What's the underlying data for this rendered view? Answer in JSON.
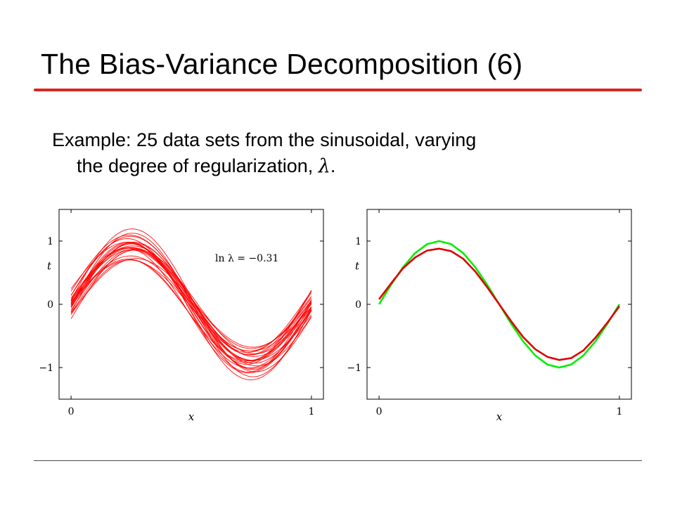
{
  "slide": {
    "title": "The Bias-Variance Decomposition (6)",
    "body_line1": "Example: 25 data sets from the sinusoidal, varying",
    "body_line2_prefix": "the degree of regularization, ",
    "body_symbol": "λ",
    "body_line2_suffix": "."
  },
  "colors": {
    "title_rule": "#d7261f",
    "fits": "#ff0000",
    "mean_fit": "#dd0000",
    "true_curve": "#00ee00"
  },
  "chart_data": [
    {
      "type": "line",
      "annotation": "ln λ = −0.31",
      "xlabel": "x",
      "ylabel": "t",
      "xlim": [
        -0.05,
        1.05
      ],
      "ylim": [
        -1.5,
        1.5
      ],
      "xticks": [
        {
          "value": 0,
          "label": "0"
        },
        {
          "value": 1,
          "label": "1"
        }
      ],
      "yticks": [
        {
          "value": 1,
          "label": "1"
        },
        {
          "value": 0,
          "label": "0"
        },
        {
          "value": -1,
          "label": "−1"
        }
      ],
      "grid": false,
      "series_description": "25 regularized fits, one per data set",
      "series": [
        {
          "a": 0.9,
          "p": 0.02,
          "c": 0.0,
          "d": 0.05
        },
        {
          "a": 0.85,
          "p": -0.05,
          "c": 0.05,
          "d": -0.1
        },
        {
          "a": 1.05,
          "p": 0.06,
          "c": -0.05,
          "d": 0.12
        },
        {
          "a": 0.8,
          "p": 0.0,
          "c": 0.1,
          "d": 0.0
        },
        {
          "a": 0.95,
          "p": 0.1,
          "c": -0.1,
          "d": -0.15
        },
        {
          "a": 0.75,
          "p": -0.08,
          "c": 0.02,
          "d": 0.2
        },
        {
          "a": 1.1,
          "p": -0.03,
          "c": 0.08,
          "d": -0.05
        },
        {
          "a": 0.88,
          "p": 0.04,
          "c": -0.15,
          "d": 0.1
        },
        {
          "a": 0.92,
          "p": -0.1,
          "c": 0.0,
          "d": -0.2
        },
        {
          "a": 1.0,
          "p": 0.12,
          "c": 0.06,
          "d": 0.08
        },
        {
          "a": 0.7,
          "p": 0.03,
          "c": -0.02,
          "d": -0.08
        },
        {
          "a": 0.98,
          "p": -0.06,
          "c": -0.08,
          "d": 0.18
        },
        {
          "a": 0.83,
          "p": 0.08,
          "c": 0.12,
          "d": -0.12
        },
        {
          "a": 1.08,
          "p": 0.01,
          "c": -0.12,
          "d": 0.02
        },
        {
          "a": 0.86,
          "p": -0.12,
          "c": 0.04,
          "d": 0.14
        },
        {
          "a": 0.94,
          "p": 0.05,
          "c": 0.15,
          "d": -0.02
        },
        {
          "a": 0.78,
          "p": -0.02,
          "c": -0.06,
          "d": -0.18
        },
        {
          "a": 1.02,
          "p": 0.09,
          "c": 0.02,
          "d": 0.22
        },
        {
          "a": 0.9,
          "p": -0.07,
          "c": -0.03,
          "d": 0.0
        },
        {
          "a": 0.96,
          "p": 0.0,
          "c": 0.09,
          "d": -0.1
        },
        {
          "a": 0.82,
          "p": 0.11,
          "c": -0.09,
          "d": 0.06
        },
        {
          "a": 1.12,
          "p": -0.04,
          "c": -0.01,
          "d": -0.06
        },
        {
          "a": 0.87,
          "p": 0.07,
          "c": 0.07,
          "d": 0.16
        },
        {
          "a": 0.99,
          "p": -0.09,
          "c": -0.04,
          "d": -0.14
        },
        {
          "a": 0.84,
          "p": 0.02,
          "c": 0.03,
          "d": 0.04
        }
      ]
    },
    {
      "type": "line",
      "xlabel": "x",
      "ylabel": "t",
      "xlim": [
        -0.05,
        1.05
      ],
      "ylim": [
        -1.5,
        1.5
      ],
      "xticks": [
        {
          "value": 0,
          "label": "0"
        },
        {
          "value": 1,
          "label": "1"
        }
      ],
      "yticks": [
        {
          "value": 1,
          "label": "1"
        },
        {
          "value": 0,
          "label": "0"
        },
        {
          "value": -1,
          "label": "−1"
        }
      ],
      "grid": false,
      "series": [
        {
          "color": "#00ee00",
          "x": [
            0,
            0.05,
            0.1,
            0.15,
            0.2,
            0.25,
            0.3,
            0.35,
            0.4,
            0.45,
            0.5,
            0.55,
            0.6,
            0.65,
            0.7,
            0.75,
            0.8,
            0.85,
            0.9,
            0.95,
            1.0
          ],
          "y": [
            0,
            0.309,
            0.588,
            0.809,
            0.951,
            1.0,
            0.951,
            0.809,
            0.588,
            0.309,
            0,
            -0.309,
            -0.588,
            -0.809,
            -0.951,
            -1.0,
            -0.951,
            -0.809,
            -0.588,
            -0.309,
            0
          ]
        },
        {
          "color": "#dd0000",
          "x": [
            0,
            0.05,
            0.1,
            0.15,
            0.2,
            0.25,
            0.3,
            0.35,
            0.4,
            0.45,
            0.5,
            0.55,
            0.6,
            0.65,
            0.7,
            0.75,
            0.8,
            0.85,
            0.9,
            0.95,
            1.0
          ],
          "y": [
            0.08,
            0.33,
            0.57,
            0.74,
            0.85,
            0.88,
            0.84,
            0.72,
            0.52,
            0.27,
            0.0,
            -0.27,
            -0.52,
            -0.71,
            -0.83,
            -0.88,
            -0.85,
            -0.73,
            -0.53,
            -0.29,
            -0.03
          ]
        }
      ]
    }
  ]
}
